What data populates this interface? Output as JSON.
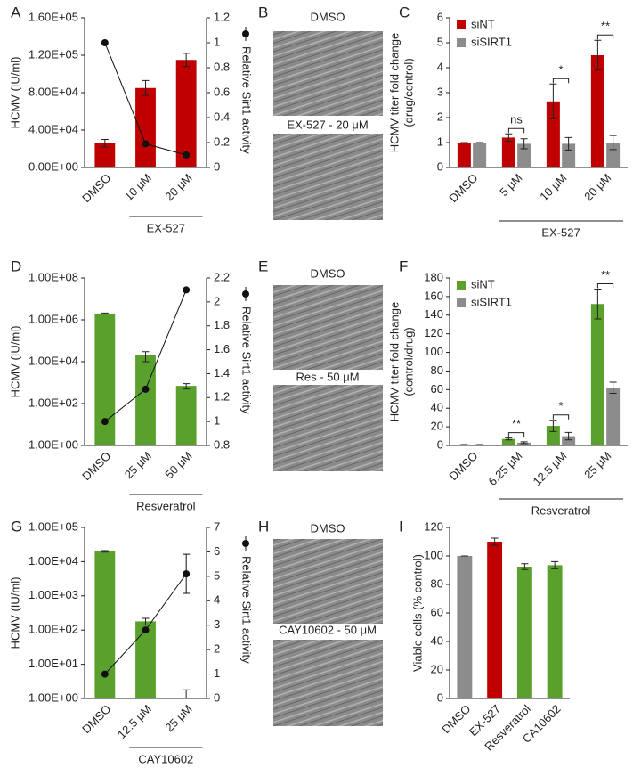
{
  "chart_data": [
    {
      "type": "bar",
      "panel": "A",
      "ylabel": "HCMV (IU/ml)",
      "categories": [
        "DMSO",
        "10 μM",
        "20 μM"
      ],
      "group_label": "EX-527",
      "ylim": [
        0,
        160000
      ],
      "yticks": [
        {
          "value": 0,
          "label": "0.00E+00"
        },
        {
          "value": 40000,
          "label": "4.00E+04"
        },
        {
          "value": 80000,
          "label": "8.00E+04"
        },
        {
          "value": 120000,
          "label": "1.20E+05"
        },
        {
          "value": 160000,
          "label": "1.60E+05"
        }
      ],
      "y2lim": [
        0,
        1.2
      ],
      "y2ticks": [
        0,
        0.2,
        0.4,
        0.6,
        0.8,
        1,
        1.2
      ],
      "series": [
        {
          "color": "#c00000",
          "values": [
            26000,
            85000,
            115000
          ],
          "errors": [
            4000,
            8000,
            7000
          ]
        },
        {
          "name": "Relative Sirt1 activity",
          "axis": "y2",
          "color": "#111111",
          "values": [
            1,
            0.19,
            0.1
          ]
        }
      ]
    },
    {
      "type": "bar",
      "panel": "C",
      "ylabel": [
        "HCMV titer fold change",
        "(drug/control)"
      ],
      "categories": [
        "DMSO",
        "5 μM",
        "10 μM",
        "20 μM"
      ],
      "group_label": "EX-527",
      "ylim": [
        0,
        6
      ],
      "yticks": [
        0,
        1,
        2,
        3,
        4,
        5,
        6
      ],
      "significance": [
        null,
        "ns",
        "*",
        "**"
      ],
      "series": [
        {
          "name": "siNT",
          "color": "#c00000",
          "values": [
            1,
            1.2,
            2.65,
            4.5
          ],
          "errors": [
            0,
            0.15,
            0.7,
            0.6
          ]
        },
        {
          "name": "siSIRT1",
          "color": "#8c8c8c",
          "values": [
            1,
            0.95,
            0.95,
            1.0
          ],
          "errors": [
            0,
            0.2,
            0.25,
            0.28
          ]
        }
      ]
    },
    {
      "type": "bar",
      "panel": "D",
      "ylabel": "HCMV (IU/ml)",
      "categories": [
        "DMSO",
        "25 μM",
        "50 μM"
      ],
      "group_label": "Resveratrol",
      "log": true,
      "ylim": [
        1,
        100000000
      ],
      "yticks": [
        {
          "value": 1,
          "label": "1.00E+00"
        },
        {
          "value": 100,
          "label": "1.00E+02"
        },
        {
          "value": 10000,
          "label": "1.00E+04"
        },
        {
          "value": 1000000,
          "label": "1.00E+06"
        },
        {
          "value": 100000000,
          "label": "1.00E+08"
        }
      ],
      "y2lim": [
        0.8,
        2.2
      ],
      "y2ticks": [
        0.8,
        1,
        1.2,
        1.4,
        1.6,
        1.8,
        2,
        2.2
      ],
      "series": [
        {
          "color": "#5aa02c",
          "values": [
            2000000,
            20000,
            700
          ],
          "errors": [
            100000,
            10000,
            200
          ]
        },
        {
          "name": "Relative Sirt1 activity",
          "axis": "y2",
          "color": "#111111",
          "values": [
            1,
            1.27,
            2.1
          ]
        }
      ]
    },
    {
      "type": "bar",
      "panel": "F",
      "ylabel": [
        "HCMV titer fold change",
        "(control/drug)"
      ],
      "categories": [
        "DMSO",
        "6.25 μM",
        "12.5 μM",
        "25 μM"
      ],
      "group_label": "Resveratrol",
      "ylim": [
        0,
        180
      ],
      "yticks": [
        0,
        20,
        40,
        60,
        80,
        100,
        120,
        140,
        160,
        180
      ],
      "significance": [
        null,
        "**",
        "*",
        "**"
      ],
      "series": [
        {
          "name": "siNT",
          "color": "#5aa02c",
          "values": [
            1,
            7,
            21,
            152
          ],
          "errors": [
            0,
            1,
            6,
            16
          ]
        },
        {
          "name": "siSIRT1",
          "color": "#8c8c8c",
          "values": [
            1,
            3,
            10,
            62
          ],
          "errors": [
            0,
            1,
            4,
            6
          ]
        }
      ]
    },
    {
      "type": "bar",
      "panel": "G",
      "ylabel": "HCMV (IU/ml)",
      "categories": [
        "DMSO",
        "12.5 μM",
        "25 μM"
      ],
      "group_label": "CAY10602",
      "log": true,
      "ylim": [
        1,
        100000
      ],
      "yticks": [
        {
          "value": 1,
          "label": "1.00E+00"
        },
        {
          "value": 10,
          "label": "1.00E+01"
        },
        {
          "value": 100,
          "label": "1.00E+02"
        },
        {
          "value": 1000,
          "label": "1.00E+03"
        },
        {
          "value": 10000,
          "label": "1.00E+04"
        },
        {
          "value": 100000,
          "label": "1.00E+05"
        }
      ],
      "y2lim": [
        0,
        7
      ],
      "y2ticks": [
        0,
        1,
        2,
        3,
        4,
        5,
        6,
        7
      ],
      "series": [
        {
          "color": "#5aa02c",
          "values": [
            20000,
            180,
            1
          ],
          "errors": [
            1000,
            40,
            0.8
          ]
        },
        {
          "name": "Relative Sirt1 activity",
          "axis": "y2",
          "color": "#111111",
          "values": [
            1,
            2.8,
            5.1
          ],
          "errors": [
            0,
            0,
            0.8
          ]
        }
      ]
    },
    {
      "type": "bar",
      "panel": "I",
      "ylabel": "Viable cells (% control)",
      "categories": [
        "DMSO",
        "EX-527",
        "Resveratrol",
        "CA10602"
      ],
      "ylim": [
        0,
        120
      ],
      "yticks": [
        0,
        20,
        40,
        60,
        80,
        100,
        120
      ],
      "series": [
        {
          "colors": [
            "#8c8c8c",
            "#c00000",
            "#5aa02c",
            "#5aa02c"
          ],
          "values": [
            100,
            110,
            92.5,
            93.5
          ],
          "errors": [
            0,
            2.5,
            2,
            2.5
          ]
        }
      ]
    }
  ],
  "images": [
    {
      "panel": "B",
      "labels": [
        "DMSO",
        "EX-527 - 20 μM"
      ]
    },
    {
      "panel": "E",
      "labels": [
        "DMSO",
        "Res - 50 μM"
      ]
    },
    {
      "panel": "H",
      "labels": [
        "DMSO",
        "CAY10602 - 50 μM"
      ]
    }
  ]
}
